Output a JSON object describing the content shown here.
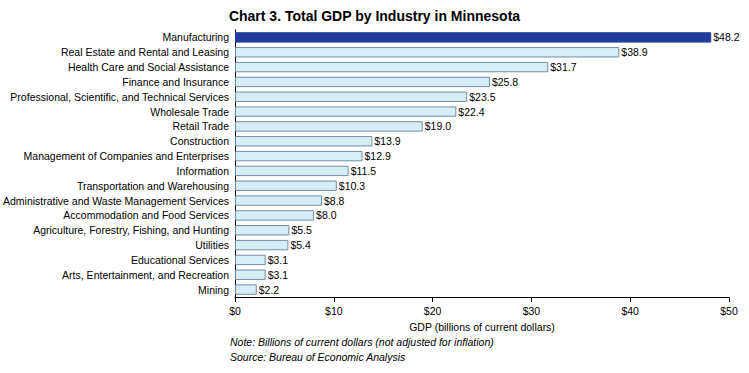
{
  "chart_data": {
    "type": "bar",
    "orientation": "horizontal",
    "title": "Chart 3. Total GDP by Industry in Minnesota",
    "xlabel": "GDP (billions of current dollars)",
    "annotations": [
      "Note: Billions of current dollars (not adjusted for inflation)",
      "Source: Bureau of Economic Analysis"
    ],
    "categories": [
      "Manufacturing",
      "Real Estate and Rental and Leasing",
      "Health Care and Social Assistance",
      "Finance and Insurance",
      "Professional, Scientific, and Technical Services",
      "Wholesale Trade",
      "Retail Trade",
      "Construction",
      "Management of Companies and Enterprises",
      "Information",
      "Transportation and Warehousing",
      "Administrative and Waste Management Services",
      "Accommodation and Food Services",
      "Agriculture, Forestry, Fishing, and Hunting",
      "Utilities",
      "Educational Services",
      "Arts, Entertainment, and Recreation",
      "Mining"
    ],
    "values": [
      48.2,
      38.9,
      31.7,
      25.8,
      23.5,
      22.4,
      19.0,
      13.9,
      12.9,
      11.5,
      10.3,
      8.8,
      8.0,
      5.5,
      5.4,
      3.1,
      3.1,
      2.2
    ],
    "value_labels": [
      "$48.2",
      "$38.9",
      "$31.7",
      "$25.8",
      "$23.5",
      "$22.4",
      "$19.0",
      "$13.9",
      "$12.9",
      "$11.5",
      "$10.3",
      "$8.8",
      "$8.0",
      "$5.5",
      "$5.4",
      "$3.1",
      "$3.1",
      "$2.2"
    ],
    "colors": [
      "#1f3d99",
      "#d6eef8",
      "#d6eef8",
      "#d6eef8",
      "#d6eef8",
      "#d6eef8",
      "#d6eef8",
      "#d6eef8",
      "#d6eef8",
      "#d6eef8",
      "#d6eef8",
      "#d6eef8",
      "#d6eef8",
      "#d6eef8",
      "#d6eef8",
      "#d6eef8",
      "#d6eef8",
      "#d6eef8"
    ],
    "data_labels": true,
    "grid": false,
    "xlim": [
      0,
      50
    ],
    "xticks": [
      {
        "value": 0,
        "label": "$0"
      },
      {
        "value": 10,
        "label": "$10"
      },
      {
        "value": 20,
        "label": "$20"
      },
      {
        "value": 30,
        "label": "$30"
      },
      {
        "value": 40,
        "label": "$40"
      },
      {
        "value": 50,
        "label": "$50"
      }
    ]
  }
}
